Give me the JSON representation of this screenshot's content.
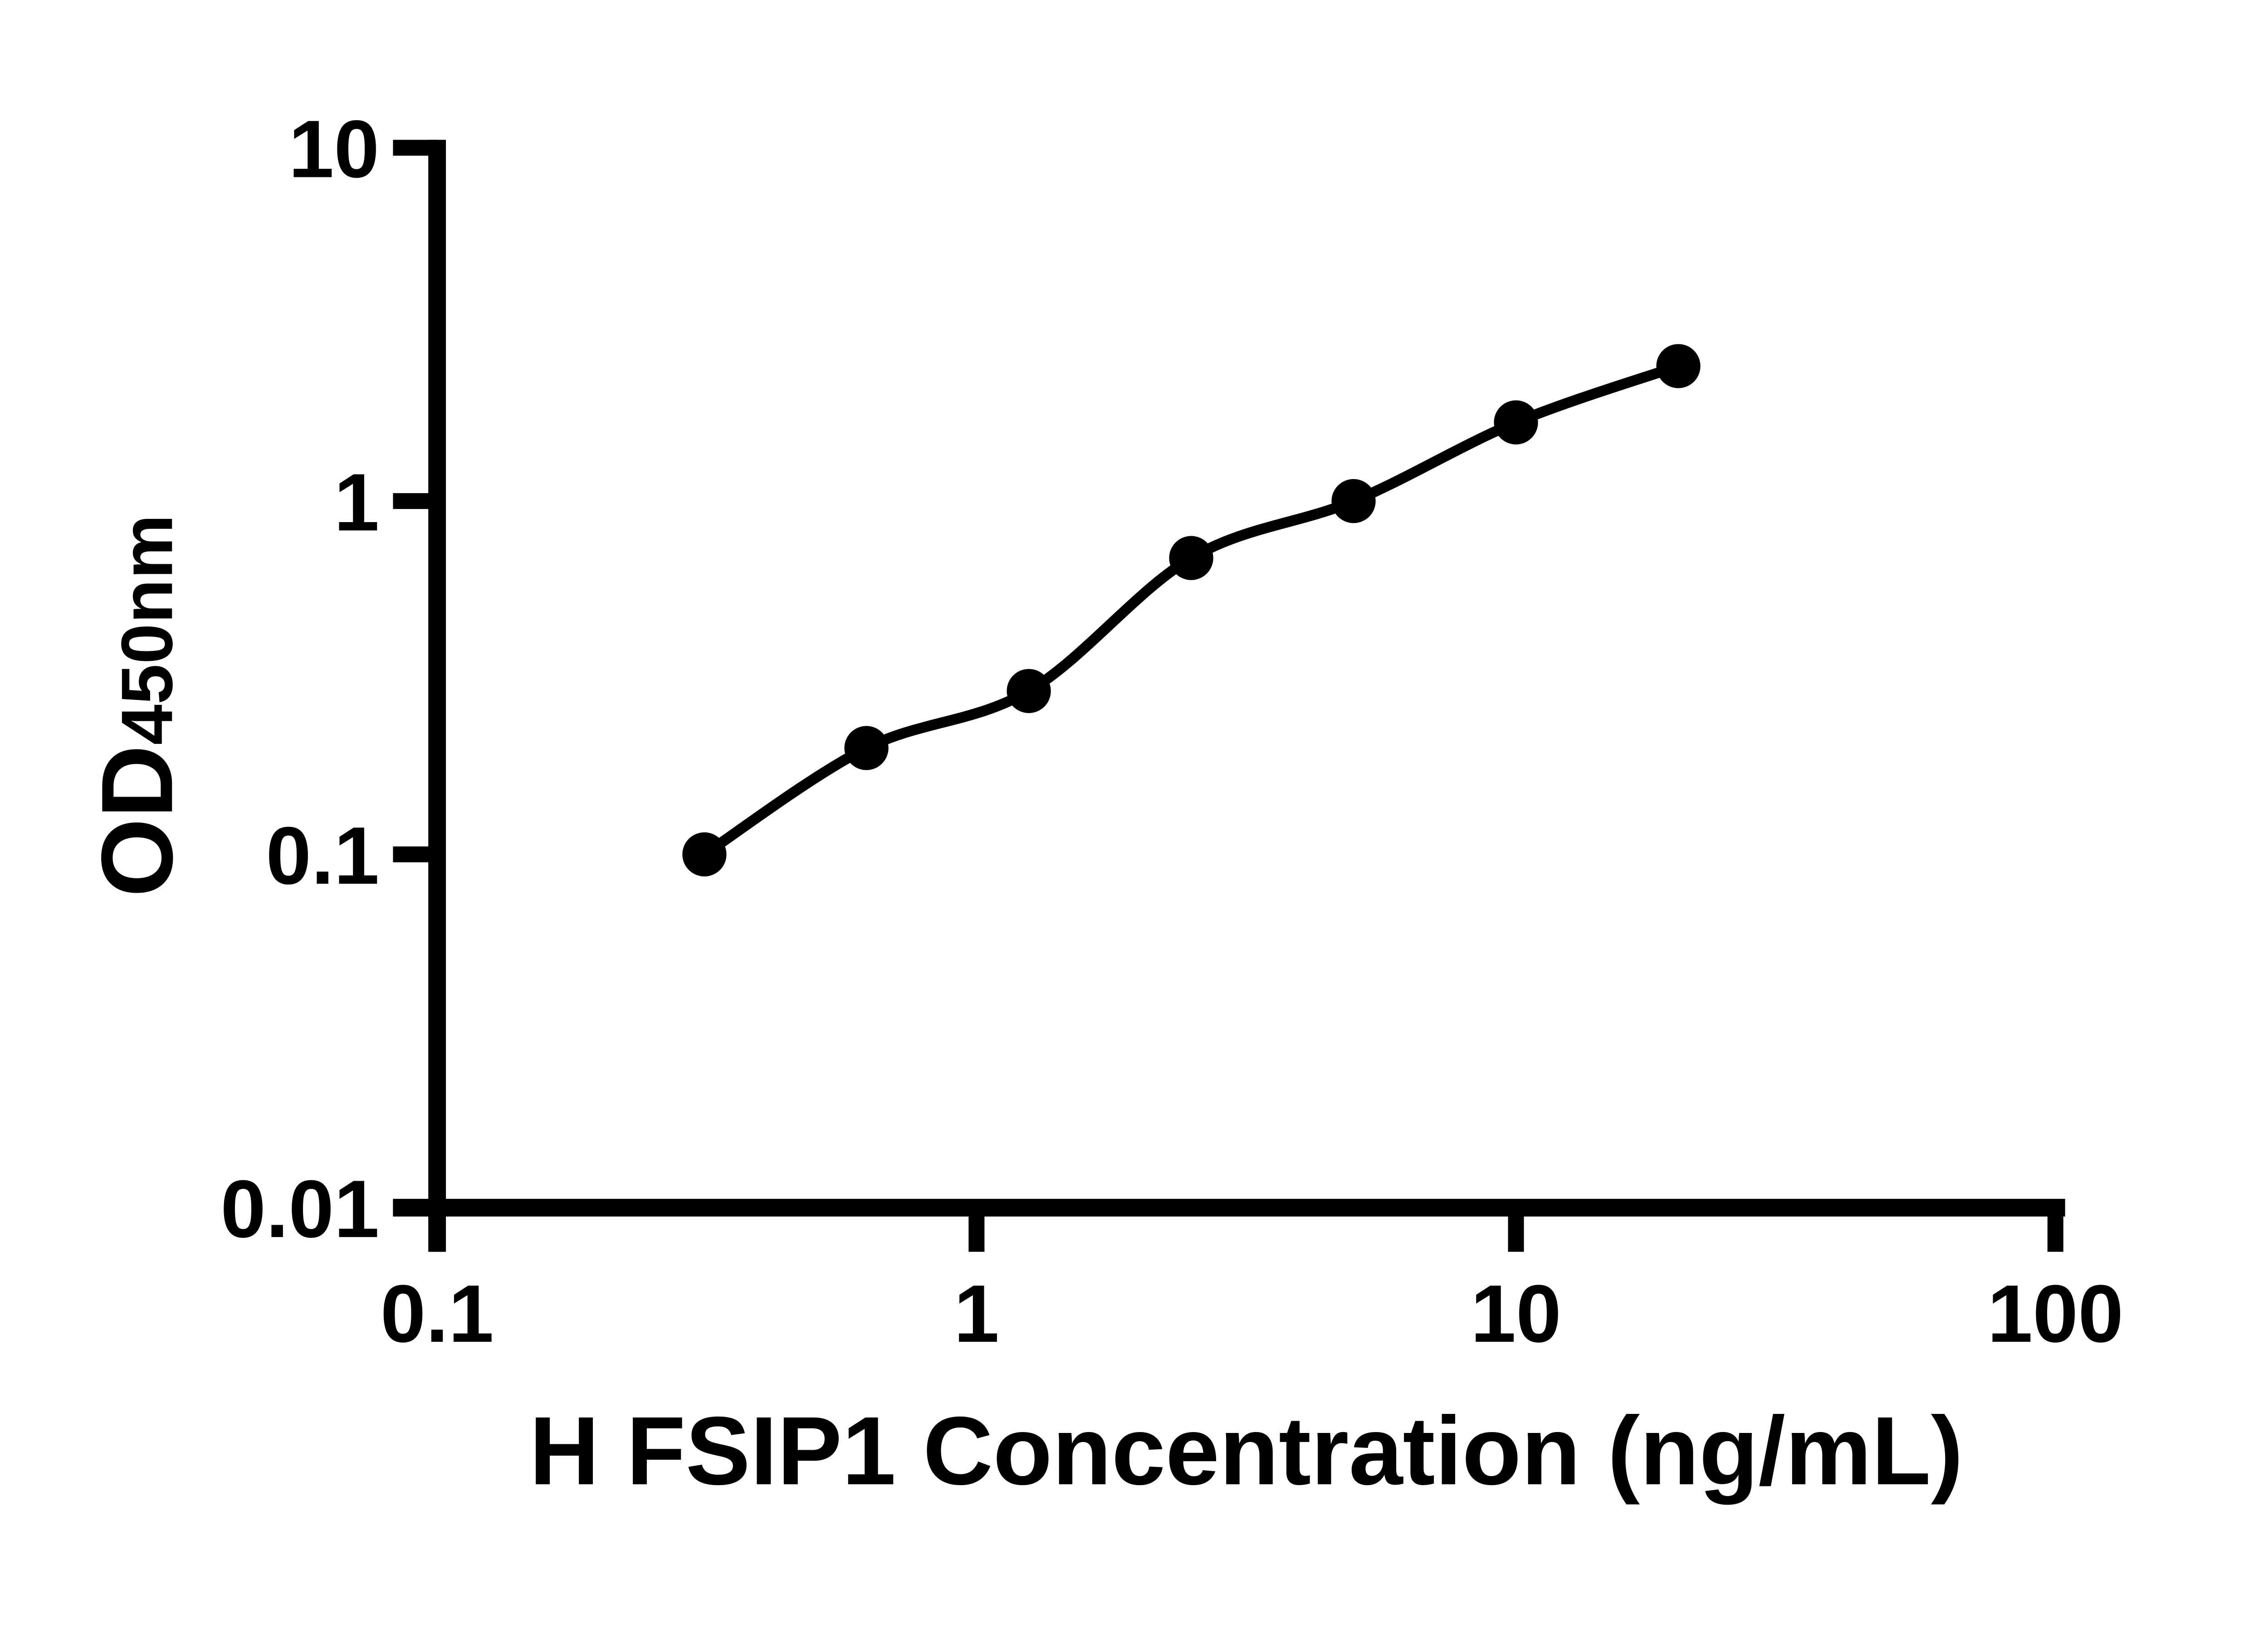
{
  "figure": {
    "background_color": "#ffffff",
    "foreground_color": "#000000"
  },
  "chart_data": {
    "type": "scatter",
    "subtype": "ELISA standard curve, smooth fitted line with filled circle markers",
    "title": "",
    "xlabel": "H FSIP1 Concentration (ng/mL)",
    "ylabel_main": "OD",
    "ylabel_sub": "450nm",
    "x_scale": "log10",
    "y_scale": "log10",
    "xlim": [
      0.1,
      100
    ],
    "ylim": [
      0.01,
      10
    ],
    "grid": false,
    "legend": false,
    "x_ticks": [
      {
        "value": 0.1,
        "label": "0.1"
      },
      {
        "value": 1,
        "label": "1"
      },
      {
        "value": 10,
        "label": "10"
      },
      {
        "value": 100,
        "label": "100"
      }
    ],
    "y_ticks": [
      {
        "value": 10,
        "label": "10"
      },
      {
        "value": 1,
        "label": "1"
      },
      {
        "value": 0.1,
        "label": "0.1"
      },
      {
        "value": 0.01,
        "label": "0.01"
      }
    ],
    "series": [
      {
        "name": "standard-curve",
        "marker": "filled-circle",
        "line": "smooth",
        "color": "#000000",
        "points": [
          {
            "x": 0.313,
            "y": 0.1
          },
          {
            "x": 0.625,
            "y": 0.2
          },
          {
            "x": 1.25,
            "y": 0.29
          },
          {
            "x": 2.5,
            "y": 0.69
          },
          {
            "x": 5,
            "y": 1.0
          },
          {
            "x": 10,
            "y": 1.67
          },
          {
            "x": 20,
            "y": 2.41
          }
        ]
      }
    ]
  }
}
